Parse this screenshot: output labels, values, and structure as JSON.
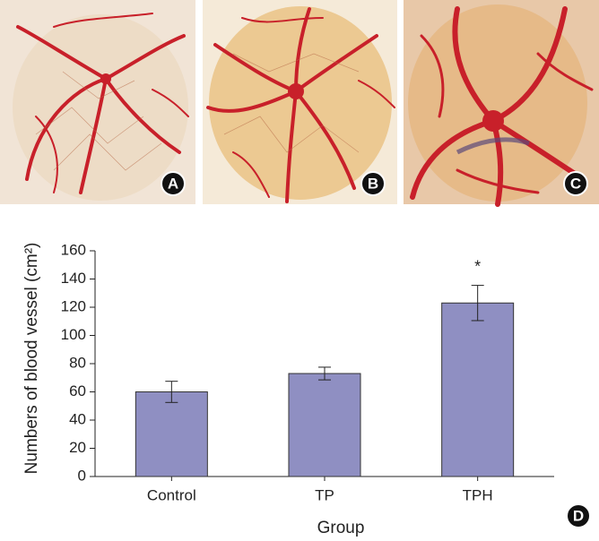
{
  "panel_labels": [
    "A",
    "B",
    "C",
    "D"
  ],
  "chart_data": {
    "type": "bar",
    "categories": [
      "Control",
      "TP",
      "TPH"
    ],
    "values": [
      60,
      73,
      123
    ],
    "errors": [
      7.5,
      4.5,
      12.5
    ],
    "color": "#8f8fc2",
    "xlabel": "Group",
    "ylabel": "Numbers of blood vessel (cm²)",
    "ylim": [
      0,
      160
    ],
    "yticks": [
      0,
      20,
      40,
      60,
      80,
      100,
      120,
      140,
      160
    ],
    "annotations": [
      {
        "text": "*",
        "x": "TPH"
      }
    ]
  }
}
